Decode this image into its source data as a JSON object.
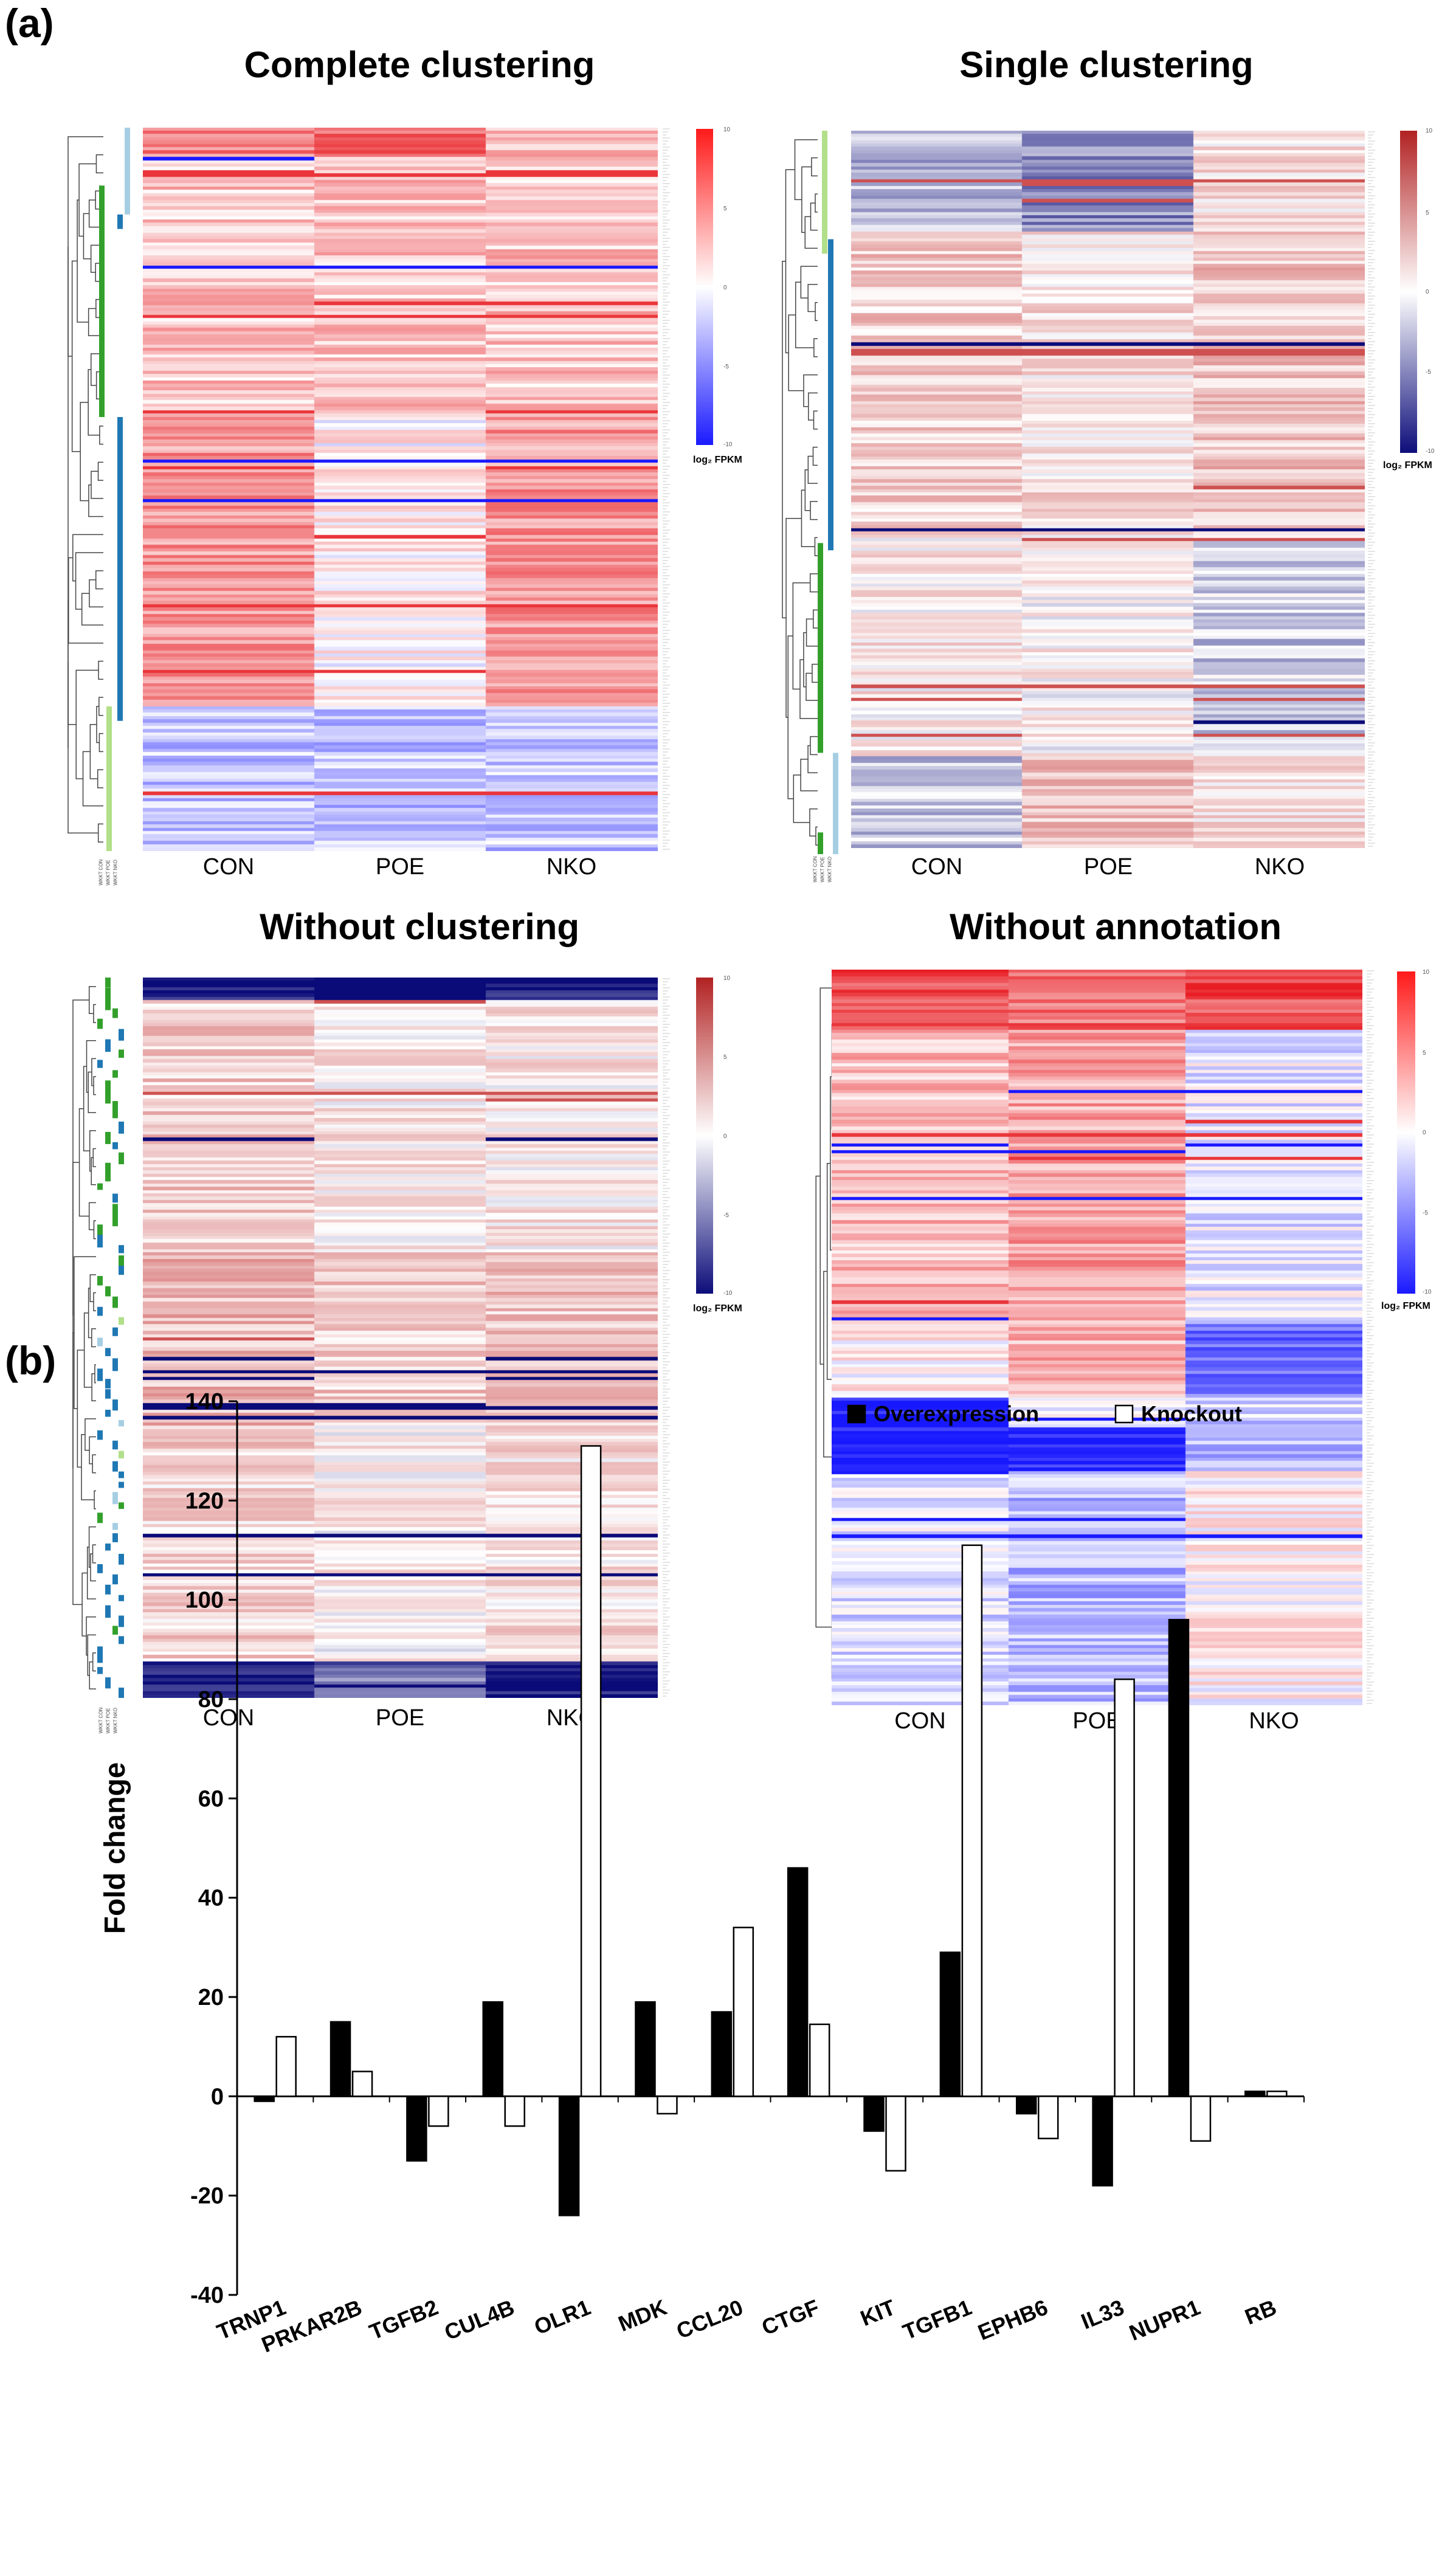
{
  "panel_a_label": "(a)",
  "panel_b_label": "(b)",
  "heatmaps": [
    {
      "title": "Complete clustering",
      "columns": [
        "CON",
        "POE",
        "NKO"
      ],
      "colorbar_unit": "log₂ FPKM",
      "colorbar_ticks": [
        "10",
        "5",
        "0",
        "-5",
        "-10"
      ],
      "palette": "bright",
      "pattern": "complete"
    },
    {
      "title": "Single clustering",
      "columns": [
        "CON",
        "POE",
        "NKO"
      ],
      "colorbar_unit": "log₂ FPKM",
      "colorbar_ticks": [
        "10",
        "5",
        "0",
        "-5",
        "-10"
      ],
      "palette": "dark",
      "pattern": "single"
    },
    {
      "title": "Without clustering",
      "columns": [
        "CON",
        "POE",
        "NKO"
      ],
      "colorbar_unit": "log₂ FPKM",
      "colorbar_ticks": [
        "10",
        "5",
        "0",
        "-5",
        "-10"
      ],
      "palette": "dark",
      "pattern": "none"
    },
    {
      "title": "Without annotation",
      "columns": [
        "CON",
        "POE",
        "NKO"
      ],
      "colorbar_unit": "log₂ FPKM",
      "colorbar_ticks": [
        "10",
        "5",
        "0",
        "-5",
        "-10"
      ],
      "palette": "bright",
      "pattern": "noannot"
    }
  ],
  "annotation_labels": [
    "WKKT CON",
    "WKKT POE",
    "WKKT NKO"
  ],
  "colors": {
    "red": "#e8141b",
    "blue": "#1a1aff",
    "navy": "#0d0d7a",
    "annot_light_blue": "#a6cee3",
    "annot_blue": "#1f78b4",
    "annot_green": "#33a02c",
    "annot_light_green": "#b2df8a"
  },
  "chart_data": {
    "type": "bar",
    "categories": [
      "TRNP1",
      "PRKAR2B",
      "TGFB2",
      "CUL4B",
      "OLR1",
      "MDK",
      "CCL20",
      "CTGF",
      "KIT",
      "TGFB1",
      "EPHB6",
      "IL33",
      "NUPR1",
      "RB"
    ],
    "series": [
      {
        "name": "Overexpression",
        "values": [
          -1,
          15,
          -13,
          19,
          -24,
          19,
          17,
          46,
          -7,
          29,
          -3.5,
          -18,
          96,
          1
        ],
        "color": "#000000"
      },
      {
        "name": "Knockout",
        "values": [
          12,
          5,
          -6,
          -6,
          131,
          -3.5,
          34,
          14.5,
          -15,
          111,
          -8.5,
          84,
          -9,
          1
        ],
        "color": "#ffffff"
      }
    ],
    "ylabel": "Fold change",
    "xlabel": "",
    "ylim": [
      -40,
      140
    ],
    "yticks": [
      -40,
      -20,
      0,
      20,
      40,
      60,
      80,
      100,
      120,
      140
    ],
    "legend_position": "top-right",
    "grid": false
  }
}
